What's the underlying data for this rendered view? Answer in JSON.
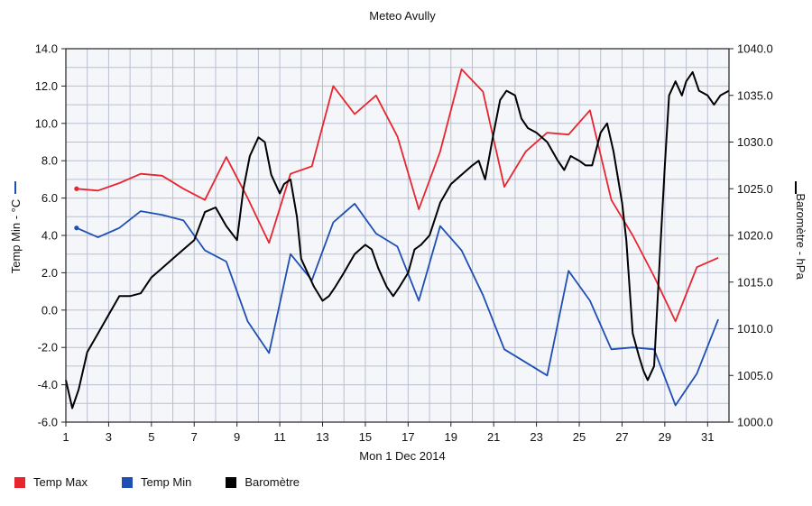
{
  "chart_data": {
    "type": "line",
    "title": "Meteo  Avully",
    "xlabel": "Mon 1 Dec 2014",
    "ylabel_left": "Temp Min - °C",
    "ylabel_right": "Baromètre - hPa",
    "x_ticks": [
      "1",
      "3",
      "5",
      "7",
      "9",
      "11",
      "13",
      "15",
      "17",
      "19",
      "21",
      "23",
      "25",
      "27",
      "29",
      "31"
    ],
    "y_left_ticks": [
      "14.0",
      "12.0",
      "10.0",
      "8.0",
      "6.0",
      "4.0",
      "2.0",
      "0.0",
      "-2.0",
      "-4.0",
      "-6.0"
    ],
    "y_right_ticks": [
      "1040.0",
      "1035.0",
      "1030.0",
      "1025.0",
      "1020.0",
      "1015.0",
      "1010.0",
      "1005.0",
      "1000.0"
    ],
    "xlim": [
      1,
      32
    ],
    "ylim_left": [
      -6,
      14
    ],
    "ylim_right": [
      1000,
      1040
    ],
    "grid": true,
    "legend_position": "bottom-left",
    "series": [
      {
        "name": "Temp Max",
        "axis": "left",
        "color": "#e8252f",
        "x": [
          1.5,
          2.5,
          3.5,
          4.5,
          5.5,
          6.5,
          7.5,
          8.5,
          9.5,
          10.5,
          11.5,
          12.5,
          13.5,
          14.5,
          15.5,
          16.5,
          17.5,
          18.5,
          19.5,
          20.5,
          21.5,
          22.5,
          23.5,
          24.5,
          25.5,
          26.5,
          27.5,
          28.5,
          29.5,
          30.5,
          31.5
        ],
        "y": [
          6.5,
          6.4,
          6.8,
          7.3,
          7.2,
          6.5,
          5.9,
          8.2,
          6.0,
          3.6,
          7.3,
          7.7,
          12.0,
          10.5,
          11.5,
          9.3,
          5.4,
          8.5,
          12.9,
          11.7,
          6.6,
          8.5,
          9.5,
          9.4,
          10.7,
          5.9,
          4.0,
          1.8,
          -0.6,
          2.3,
          2.8
        ]
      },
      {
        "name": "Temp Min",
        "axis": "left",
        "color": "#1f4fb5",
        "x": [
          1.5,
          2.5,
          3.5,
          4.5,
          5.5,
          6.5,
          7.5,
          8.5,
          9.5,
          10.5,
          11.5,
          12.5,
          13.5,
          14.5,
          15.5,
          16.5,
          17.5,
          18.5,
          19.5,
          20.5,
          21.5,
          22.5,
          23.5,
          24.5,
          25.5,
          26.5,
          27.5,
          28.5,
          29.5,
          30.5,
          31.5
        ],
        "y": [
          4.4,
          3.9,
          4.4,
          5.3,
          5.1,
          4.8,
          3.2,
          2.6,
          -0.6,
          -2.3,
          3.0,
          1.6,
          4.7,
          5.7,
          4.1,
          3.4,
          0.5,
          4.5,
          3.2,
          0.8,
          -2.1,
          -2.8,
          -3.5,
          2.1,
          0.5,
          -2.1,
          -2.0,
          -2.1,
          -5.1,
          -3.4,
          -0.5
        ]
      },
      {
        "name": "Baromètre",
        "axis": "right",
        "color": "#000000",
        "x": [
          1.0,
          1.3,
          1.6,
          2.0,
          2.5,
          3.0,
          3.5,
          4.0,
          4.5,
          5.0,
          5.5,
          6.0,
          6.5,
          7.0,
          7.5,
          8.0,
          8.5,
          9.0,
          9.3,
          9.6,
          10.0,
          10.3,
          10.6,
          11.0,
          11.2,
          11.5,
          11.8,
          12.0,
          12.3,
          12.6,
          13.0,
          13.3,
          13.6,
          14.0,
          14.5,
          15.0,
          15.3,
          15.6,
          16.0,
          16.3,
          16.6,
          17.0,
          17.3,
          17.6,
          18.0,
          18.5,
          19.0,
          19.5,
          20.0,
          20.3,
          20.6,
          21.0,
          21.3,
          21.6,
          22.0,
          22.3,
          22.6,
          23.0,
          23.5,
          24.0,
          24.3,
          24.6,
          25.0,
          25.3,
          25.6,
          26.0,
          26.3,
          26.6,
          27.0,
          27.2,
          27.5,
          27.8,
          28.0,
          28.2,
          28.5,
          28.8,
          29.0,
          29.2,
          29.5,
          29.8,
          30.0,
          30.3,
          30.6,
          31.0,
          31.3,
          31.6,
          32.0
        ],
        "y": [
          1004.5,
          1001.5,
          1003.5,
          1007.5,
          1009.5,
          1011.5,
          1013.5,
          1013.5,
          1013.8,
          1015.5,
          1016.5,
          1017.5,
          1018.5,
          1019.5,
          1022.5,
          1023.0,
          1021.0,
          1019.5,
          1025.0,
          1028.5,
          1030.5,
          1030.0,
          1026.5,
          1024.5,
          1025.5,
          1026.0,
          1022.0,
          1017.5,
          1016.0,
          1014.5,
          1013.0,
          1013.5,
          1014.5,
          1016.0,
          1018.0,
          1019.0,
          1018.5,
          1016.5,
          1014.5,
          1013.5,
          1014.5,
          1016.0,
          1018.5,
          1019.0,
          1020.0,
          1023.5,
          1025.5,
          1026.5,
          1027.5,
          1028.0,
          1026.0,
          1031.0,
          1034.5,
          1035.5,
          1035.0,
          1032.5,
          1031.5,
          1031.0,
          1030.0,
          1028.0,
          1027.0,
          1028.5,
          1028.0,
          1027.5,
          1027.5,
          1031.0,
          1032.0,
          1029.0,
          1023.5,
          1019.5,
          1009.5,
          1007.0,
          1005.5,
          1004.5,
          1006.0,
          1019.0,
          1027.5,
          1035.0,
          1036.5,
          1035.0,
          1036.5,
          1037.5,
          1035.5,
          1035.0,
          1034.0,
          1035.0,
          1035.5
        ]
      }
    ],
    "start_markers": {
      "Temp Max": true,
      "Temp Min": true
    }
  }
}
